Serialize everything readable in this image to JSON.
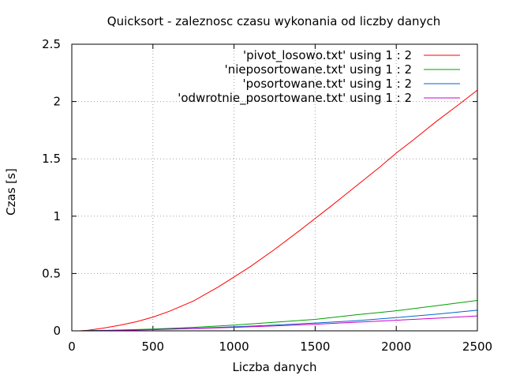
{
  "chart_data": {
    "type": "line",
    "title": "Quicksort - zaleznosc czasu wykonania od liczby danych",
    "xlabel": "Liczba danych",
    "ylabel": "Czas [s]",
    "xlim": [
      0,
      2500
    ],
    "ylim": [
      0,
      2.5
    ],
    "x_ticks": [
      0,
      500,
      1000,
      1500,
      2000,
      2500
    ],
    "y_ticks": [
      0,
      0.5,
      1,
      1.5,
      2,
      2.5
    ],
    "x_tick_labels": [
      "0",
      "500",
      "1000",
      "1500",
      "2000",
      "2500"
    ],
    "y_tick_labels": [
      "0",
      "0.5",
      "1",
      "1.5",
      "2",
      "2.5"
    ],
    "grid": true,
    "legend_position": "top-right",
    "series": [
      {
        "name": "'pivot_losowo.txt' using 1 : 2",
        "color": "#ff0000",
        "x": [
          50,
          100,
          200,
          300,
          400,
          500,
          600,
          750,
          900,
          1000,
          1100,
          1250,
          1400,
          1500,
          1600,
          1750,
          1900,
          2000,
          2100,
          2250,
          2400,
          2500
        ],
        "y": [
          0.0,
          0.005,
          0.025,
          0.05,
          0.08,
          0.12,
          0.17,
          0.26,
          0.38,
          0.47,
          0.56,
          0.71,
          0.87,
          0.98,
          1.09,
          1.26,
          1.43,
          1.55,
          1.66,
          1.83,
          1.99,
          2.1
        ]
      },
      {
        "name": "'nieposortowane.txt' using 1 : 2",
        "color": "#00a000",
        "x": [
          50,
          250,
          500,
          750,
          1000,
          1250,
          1500,
          1750,
          2000,
          2250,
          2500
        ],
        "y": [
          0.0,
          0.005,
          0.015,
          0.03,
          0.05,
          0.075,
          0.1,
          0.14,
          0.175,
          0.22,
          0.265
        ]
      },
      {
        "name": "'posortowane.txt' using 1 : 2",
        "color": "#0066cc",
        "x": [
          50,
          250,
          500,
          750,
          1000,
          1250,
          1500,
          1750,
          2000,
          2250,
          2500
        ],
        "y": [
          0.0,
          0.004,
          0.012,
          0.022,
          0.035,
          0.05,
          0.068,
          0.088,
          0.115,
          0.145,
          0.18
        ]
      },
      {
        "name": "'odwrotnie_posortowane.txt' using 1 : 2",
        "color": "#cc00cc",
        "x": [
          50,
          250,
          500,
          750,
          1000,
          1250,
          1500,
          1750,
          2000,
          2250,
          2500
        ],
        "y": [
          0.0,
          0.003,
          0.01,
          0.02,
          0.03,
          0.043,
          0.058,
          0.075,
          0.092,
          0.11,
          0.13
        ]
      }
    ]
  }
}
